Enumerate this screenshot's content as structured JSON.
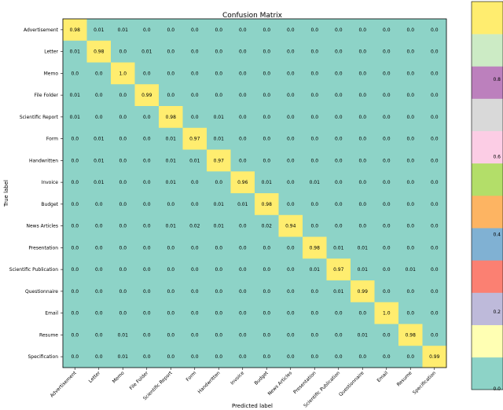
{
  "chart_data": {
    "type": "heatmap",
    "title": "Confusion Matrix",
    "xlabel": "Predicted label",
    "ylabel": "True label",
    "labels": [
      "Advertisement",
      "Letter",
      "Memo",
      "File Folder",
      "Scientific Report",
      "Form",
      "Handwritten",
      "Invoice",
      "Budget",
      "News Articles",
      "Presentation",
      "Scientific Publication",
      "Questionnaire",
      "Email",
      "Resume",
      "Specification"
    ],
    "matrix": [
      [
        0.98,
        0.01,
        0.01,
        0.0,
        0.0,
        0.0,
        0.0,
        0.0,
        0.0,
        0.0,
        0.0,
        0.0,
        0.0,
        0.0,
        0.0,
        0.0
      ],
      [
        0.01,
        0.98,
        0.0,
        0.01,
        0.0,
        0.0,
        0.0,
        0.0,
        0.0,
        0.0,
        0.0,
        0.0,
        0.0,
        0.0,
        0.0,
        0.0
      ],
      [
        0.0,
        0.0,
        1.0,
        0.0,
        0.0,
        0.0,
        0.0,
        0.0,
        0.0,
        0.0,
        0.0,
        0.0,
        0.0,
        0.0,
        0.0,
        0.0
      ],
      [
        0.01,
        0.0,
        0.0,
        0.99,
        0.0,
        0.0,
        0.0,
        0.0,
        0.0,
        0.0,
        0.0,
        0.0,
        0.0,
        0.0,
        0.0,
        0.0
      ],
      [
        0.01,
        0.0,
        0.0,
        0.0,
        0.98,
        0.0,
        0.01,
        0.0,
        0.0,
        0.0,
        0.0,
        0.0,
        0.0,
        0.0,
        0.0,
        0.0
      ],
      [
        0.0,
        0.01,
        0.0,
        0.0,
        0.01,
        0.97,
        0.01,
        0.0,
        0.0,
        0.0,
        0.0,
        0.0,
        0.0,
        0.0,
        0.0,
        0.0
      ],
      [
        0.0,
        0.01,
        0.0,
        0.0,
        0.01,
        0.01,
        0.97,
        0.0,
        0.0,
        0.0,
        0.0,
        0.0,
        0.0,
        0.0,
        0.0,
        0.0
      ],
      [
        0.0,
        0.01,
        0.0,
        0.0,
        0.01,
        0.0,
        0.0,
        0.96,
        0.01,
        0.0,
        0.01,
        0.0,
        0.0,
        0.0,
        0.0,
        0.0
      ],
      [
        0.0,
        0.0,
        0.0,
        0.0,
        0.0,
        0.0,
        0.01,
        0.01,
        0.98,
        0.0,
        0.0,
        0.0,
        0.0,
        0.0,
        0.0,
        0.0
      ],
      [
        0.0,
        0.0,
        0.0,
        0.0,
        0.01,
        0.02,
        0.01,
        0.0,
        0.02,
        0.94,
        0.0,
        0.0,
        0.0,
        0.0,
        0.0,
        0.0
      ],
      [
        0.0,
        0.0,
        0.0,
        0.0,
        0.0,
        0.0,
        0.0,
        0.0,
        0.0,
        0.0,
        0.98,
        0.01,
        0.01,
        0.0,
        0.0,
        0.0
      ],
      [
        0.0,
        0.0,
        0.0,
        0.0,
        0.0,
        0.0,
        0.0,
        0.0,
        0.0,
        0.0,
        0.01,
        0.97,
        0.01,
        0.0,
        0.01,
        0.0
      ],
      [
        0.0,
        0.0,
        0.0,
        0.0,
        0.0,
        0.0,
        0.0,
        0.0,
        0.0,
        0.0,
        0.0,
        0.01,
        0.99,
        0.0,
        0.0,
        0.0
      ],
      [
        0.0,
        0.0,
        0.0,
        0.0,
        0.0,
        0.0,
        0.0,
        0.0,
        0.0,
        0.0,
        0.0,
        0.0,
        0.0,
        1.0,
        0.0,
        0.0
      ],
      [
        0.0,
        0.0,
        0.01,
        0.0,
        0.0,
        0.0,
        0.0,
        0.0,
        0.0,
        0.0,
        0.0,
        0.0,
        0.01,
        0.0,
        0.98,
        0.0
      ],
      [
        0.0,
        0.0,
        0.01,
        0.0,
        0.0,
        0.0,
        0.0,
        0.0,
        0.0,
        0.0,
        0.0,
        0.0,
        0.0,
        0.0,
        0.0,
        0.99
      ]
    ],
    "colorbar": {
      "ticks": [
        0.0,
        0.2,
        0.4,
        0.6,
        0.8
      ],
      "range": [
        0,
        1
      ],
      "colormap": [
        "#8dd3c7",
        "#ffffb3",
        "#bebada",
        "#fb8072",
        "#80b1d3",
        "#fdb462",
        "#b3de69",
        "#fccde5",
        "#d9d9d9",
        "#bc80bd",
        "#ccebc5",
        "#ffed6f"
      ]
    },
    "grid": false
  }
}
